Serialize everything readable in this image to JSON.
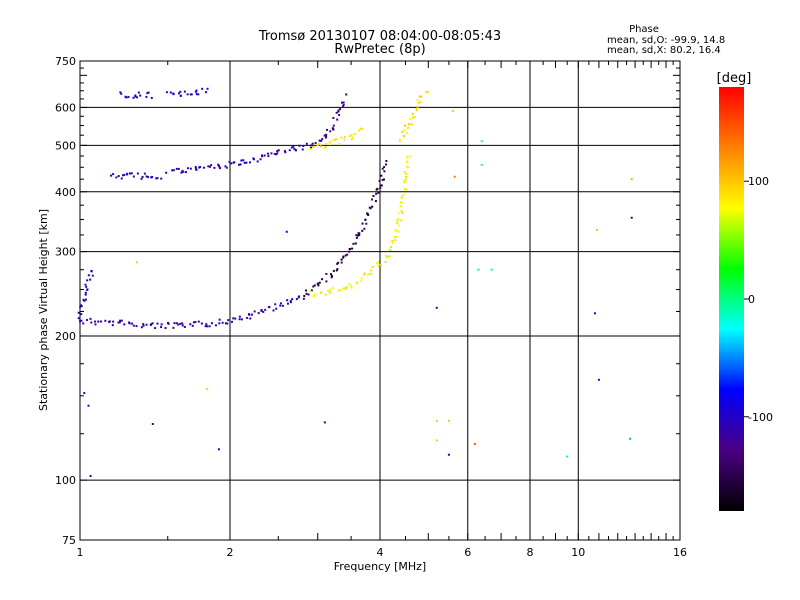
{
  "chart_data": {
    "type": "scatter",
    "title": "Tromsø 20130107 08:04:00-08:05:43",
    "subtitle": "RwPretec (8p)",
    "xlabel": "Frequency [MHz]",
    "ylabel": "Stationary phase Virtual Height [km]",
    "x_scale": "log",
    "y_scale": "log",
    "xlim": [
      1,
      16
    ],
    "ylim": [
      75,
      750
    ],
    "x_ticks": [
      1,
      2,
      4,
      6,
      8,
      10,
      16
    ],
    "y_ticks": [
      75,
      100,
      200,
      300,
      400,
      500,
      600,
      750
    ],
    "x_gridlines": [
      2,
      4,
      6,
      8,
      10
    ],
    "y_gridlines": [
      100,
      200,
      300,
      400,
      500,
      600
    ],
    "grid": true,
    "stats": {
      "heading": "Phase",
      "line1": "mean, sd,O: -99.9, 14.8",
      "line2": "mean, sd,X:  80.2, 16.4"
    },
    "colorbar": {
      "label": "[deg]",
      "range": [
        -180,
        180
      ],
      "ticks": [
        100,
        0,
        -100
      ]
    },
    "color_scale": [
      "#000000",
      "#4b0082",
      "#0000ff",
      "#00ffff",
      "#00ff00",
      "#ffff00",
      "#ff8000",
      "#ff0000"
    ],
    "series": [
      {
        "segments": [
          {
            "x": [
              1.0,
              1.2,
              1.4,
              1.6,
              1.8,
              2.0,
              2.2,
              2.4,
              2.6,
              2.8
            ],
            "y": [
              215,
              213,
              210,
              210,
              212,
              215,
              220,
              228,
              235,
              242
            ],
            "phase": -110
          },
          {
            "x": [
              2.8,
              3.0,
              3.2,
              3.4,
              3.6,
              3.8,
              4.0,
              4.1
            ],
            "y": [
              242,
              255,
              270,
              290,
              320,
              360,
              410,
              460
            ],
            "phase": -150
          },
          {
            "x": [
              1.15,
              1.25,
              1.35,
              1.45
            ],
            "y": [
              433,
              432,
              431,
              432
            ],
            "phase": -105
          },
          {
            "x": [
              1.5,
              1.7,
              1.9,
              2.1,
              2.3,
              2.5,
              2.7,
              2.9
            ],
            "y": [
              440,
              445,
              452,
              460,
              470,
              483,
              492,
              500
            ],
            "phase": -110
          },
          {
            "x": [
              2.9,
              3.1,
              3.2,
              3.3,
              3.4
            ],
            "y": [
              500,
              520,
              545,
              580,
              630
            ],
            "phase": -130
          },
          {
            "x": [
              1.2,
              1.3,
              1.4
            ],
            "y": [
              636,
              637,
              636
            ],
            "phase": -100
          },
          {
            "x": [
              1.5,
              1.6,
              1.7,
              1.8
            ],
            "y": [
              640,
              642,
              645,
              648
            ],
            "phase": -100
          },
          {
            "x": [
              1.0,
              1.03,
              1.06
            ],
            "y": [
              220,
              250,
              275
            ],
            "phase": -105
          }
        ]
      },
      {
        "segments": [
          {
            "x": [
              2.9,
              3.2,
              3.5,
              3.8,
              4.1,
              4.3,
              4.4,
              4.5,
              4.55
            ],
            "y": [
              245,
              248,
              255,
              268,
              290,
              320,
              360,
              420,
              480
            ],
            "phase": 80
          },
          {
            "x": [
              2.9,
              3.1,
              3.3,
              3.5,
              3.7
            ],
            "y": [
              495,
              500,
              510,
              520,
              540
            ],
            "phase": 85
          },
          {
            "x": [
              4.4,
              4.6,
              4.8,
              5.0
            ],
            "y": [
              510,
              560,
              620,
              650
            ],
            "phase": 90
          }
        ]
      }
    ],
    "scattered_points": [
      {
        "x": 1.02,
        "y": 152,
        "phase": -100
      },
      {
        "x": 1.04,
        "y": 143,
        "phase": -100
      },
      {
        "x": 1.05,
        "y": 102,
        "phase": -95
      },
      {
        "x": 1.4,
        "y": 131,
        "phase": -130
      },
      {
        "x": 1.8,
        "y": 155,
        "phase": 95
      },
      {
        "x": 1.9,
        "y": 116,
        "phase": -100
      },
      {
        "x": 1.3,
        "y": 285,
        "phase": 100
      },
      {
        "x": 3.1,
        "y": 132,
        "phase": -110
      },
      {
        "x": 2.6,
        "y": 330,
        "phase": -100
      },
      {
        "x": 5.2,
        "y": 229,
        "phase": -100
      },
      {
        "x": 5.2,
        "y": 133,
        "phase": 100
      },
      {
        "x": 5.2,
        "y": 121,
        "phase": 100
      },
      {
        "x": 5.5,
        "y": 133,
        "phase": 100
      },
      {
        "x": 5.5,
        "y": 113,
        "phase": -100
      },
      {
        "x": 6.2,
        "y": 119,
        "phase": 150
      },
      {
        "x": 6.3,
        "y": 275,
        "phase": -10
      },
      {
        "x": 6.7,
        "y": 275,
        "phase": -10
      },
      {
        "x": 6.4,
        "y": 510,
        "phase": -20
      },
      {
        "x": 6.4,
        "y": 455,
        "phase": -15
      },
      {
        "x": 5.6,
        "y": 590,
        "phase": 100
      },
      {
        "x": 5.65,
        "y": 430,
        "phase": 130
      },
      {
        "x": 9.5,
        "y": 112,
        "phase": -30
      },
      {
        "x": 10.8,
        "y": 223,
        "phase": -100
      },
      {
        "x": 11.0,
        "y": 162,
        "phase": -100
      },
      {
        "x": 10.9,
        "y": 333,
        "phase": 100
      },
      {
        "x": 12.7,
        "y": 122,
        "phase": -40
      },
      {
        "x": 12.8,
        "y": 425,
        "phase": 110
      },
      {
        "x": 12.8,
        "y": 353,
        "phase": -110
      }
    ]
  }
}
